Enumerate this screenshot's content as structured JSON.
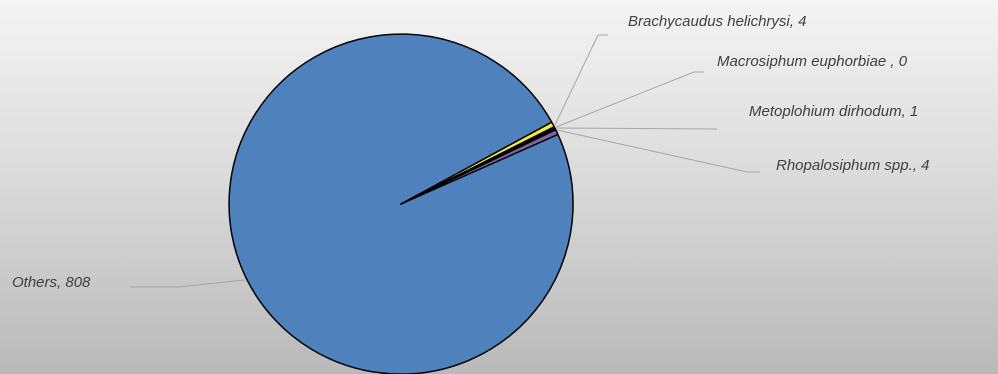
{
  "chart_data": {
    "type": "pie",
    "title": "",
    "legend": "none",
    "slices": [
      {
        "name": "Others",
        "value": 808,
        "label": "Others, 808",
        "color": "#4f81bd"
      },
      {
        "name": "Brachycaudus helichrysi",
        "value": 4,
        "label": "Brachycaudus helichrysi, 4",
        "color": "#f2ea3c"
      },
      {
        "name": "Macrosiphum euphorbiae",
        "value": 0,
        "label": "Macrosiphum euphorbiae , 0",
        "color": "#c0504d"
      },
      {
        "name": "Metoplohium dirhodum",
        "value": 1,
        "label": "Metoplohium dirhodum, 1",
        "color": "#9bbb59"
      },
      {
        "name": "Rhopalosiphum spp.",
        "value": 4,
        "label": "Rhopalosiphum spp., 4",
        "color": "#8064a2"
      }
    ],
    "slice_border_color": "#000000"
  }
}
